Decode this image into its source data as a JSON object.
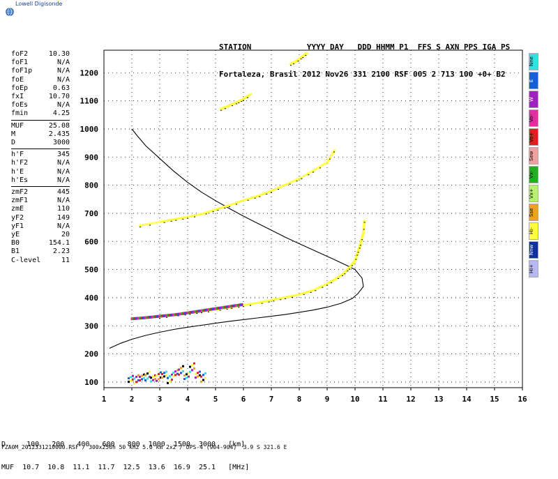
{
  "brand": {
    "name": "Lowell Digisonde"
  },
  "header": {
    "line1": "STATION            YYYY DAY   DDD HHMM P1  FFS S AXN PPS IGA PS",
    "line2": "Fortaleza, Brasil 2012 Nov26 331 2100 RSF 005 2 713 100 +0+ B2"
  },
  "params": [
    {
      "k": "foF2",
      "v": "10.30"
    },
    {
      "k": "foF1",
      "v": "N/A"
    },
    {
      "k": "foF1p",
      "v": "N/A"
    },
    {
      "k": "foE",
      "v": "N/A"
    },
    {
      "k": "foEp",
      "v": "0.63"
    },
    {
      "k": "fxI",
      "v": "10.70"
    },
    {
      "k": "foEs",
      "v": "N/A"
    },
    {
      "k": "fmin",
      "v": "4.25"
    },
    {
      "sep": true
    },
    {
      "k": "MUF",
      "v": "25.08"
    },
    {
      "k": "M",
      "v": "2.435"
    },
    {
      "k": "D",
      "v": "3000"
    },
    {
      "sep": true
    },
    {
      "k": "h'F",
      "v": "345"
    },
    {
      "k": "h'F2",
      "v": "N/A"
    },
    {
      "k": "h'E",
      "v": "N/A"
    },
    {
      "k": "h'Es",
      "v": "N/A"
    },
    {
      "sep": true
    },
    {
      "k": "zmF2",
      "v": "445"
    },
    {
      "k": "zmF1",
      "v": "N/A"
    },
    {
      "k": "zmE",
      "v": "110"
    },
    {
      "k": "yF2",
      "v": "149"
    },
    {
      "k": "yF1",
      "v": "N/A"
    },
    {
      "k": "yE",
      "v": "20"
    },
    {
      "k": "B0",
      "v": "154.1"
    },
    {
      "k": "B1",
      "v": "2.23"
    },
    {
      "k": "C-level",
      "v": "11"
    }
  ],
  "legend": [
    {
      "label": "Nne",
      "color": "#33e0e0"
    },
    {
      "label": "E",
      "color": "#1560d8"
    },
    {
      "label": "W",
      "color": "#a020c0"
    },
    {
      "label": "Vo-",
      "color": "#e030a0"
    },
    {
      "label": "Vo+",
      "color": "#e02020"
    },
    {
      "label": "Sew",
      "color": "#f0a0a0"
    },
    {
      "label": "Vx-",
      "color": "#20b020"
    },
    {
      "label": "Vx+",
      "color": "#b8f070"
    },
    {
      "label": "Sse",
      "color": "#f0a020"
    },
    {
      "label": "Hi-",
      "color": "#ffff40"
    },
    {
      "label": "Nnw",
      "color": "#1030a0"
    },
    {
      "label": "Hi+",
      "color": "#b8b8f0"
    }
  ],
  "footer": {
    "line1": "D     100   200   400   600   800  1000  1500  3000   [km]",
    "line2": "MUF  10.7  10.8  11.1  11.7  12.5  13.6  16.9  25.1   [MHz]",
    "file": "FZA0M_2012331210000.RSF / 300x256h 50 kHz 5.0 km 2x2 / DPS-4 (904-904)  3.9 S 321.6 E"
  },
  "chart_data": {
    "type": "scatter",
    "xlim": [
      1,
      16
    ],
    "ylim": [
      80,
      1280
    ],
    "x_ticks": [
      1,
      2,
      3,
      4,
      5,
      6,
      7,
      8,
      9,
      10,
      11,
      12,
      13,
      14,
      15,
      16
    ],
    "y_ticks": [
      100,
      200,
      300,
      400,
      500,
      600,
      700,
      800,
      900,
      1000,
      1100,
      1200
    ],
    "grid": true,
    "series": [
      {
        "kind": "profile_line",
        "color": "#000000",
        "x": [
          1.2,
          1.6,
          2.0,
          2.5,
          3.0,
          3.5,
          4.0,
          4.5,
          5.0,
          5.5,
          6.0,
          6.5,
          7.0,
          7.5,
          8.0,
          8.5,
          9.0,
          9.5,
          9.9,
          10.1,
          10.3,
          10.25,
          10.0,
          9.7,
          9.2,
          8.6,
          8.0,
          7.5,
          7.0,
          6.5,
          6.0,
          5.5,
          5.0,
          4.5,
          4.0,
          3.5,
          3.0,
          2.5,
          2.2,
          2.0
        ],
        "y": [
          220,
          238,
          252,
          266,
          277,
          287,
          295,
          302,
          309,
          316,
          322,
          328,
          334,
          340,
          348,
          356,
          366,
          380,
          397,
          414,
          440,
          470,
          500,
          515,
          538,
          565,
          592,
          615,
          640,
          665,
          690,
          717,
          745,
          775,
          810,
          850,
          895,
          940,
          975,
          1000
        ]
      },
      {
        "kind": "o_trace",
        "color": "#ffff40",
        "x": [
          3.0,
          3.5,
          4.0,
          4.5,
          5.0,
          5.5,
          6.0,
          6.5,
          7.0,
          7.5,
          8.0,
          8.5,
          9.0,
          9.3,
          9.6,
          9.8,
          10.0,
          10.1,
          10.2,
          10.3,
          10.35
        ],
        "y": [
          330,
          337,
          343,
          350,
          356,
          364,
          372,
          380,
          390,
          400,
          410,
          425,
          448,
          465,
          485,
          505,
          530,
          560,
          590,
          630,
          680
        ]
      },
      {
        "kind": "o_trace_2hop",
        "color": "#ffff40",
        "x": [
          2.3,
          3.0,
          3.5,
          4.0,
          4.5,
          5.0,
          5.5,
          6.0,
          6.5,
          7.0,
          7.5,
          8.0,
          8.5,
          9.0,
          9.3
        ],
        "y": [
          655,
          668,
          677,
          686,
          696,
          712,
          727,
          745,
          760,
          778,
          800,
          822,
          850,
          880,
          930
        ]
      },
      {
        "kind": "o_trace_3hop",
        "color": "#ffff40",
        "x": [
          5.2,
          5.5,
          5.8,
          6.0,
          6.3
        ],
        "y": [
          1070,
          1082,
          1095,
          1105,
          1125
        ]
      },
      {
        "kind": "o_trace_4hop",
        "color": "#ffff40",
        "x": [
          7.7,
          7.9,
          8.1,
          8.3
        ],
        "y": [
          1230,
          1240,
          1255,
          1270
        ]
      },
      {
        "kind": "multi_color_echoes",
        "colors": [
          "#e030a0",
          "#20b020",
          "#e02020",
          "#1560d8",
          "#a020c0"
        ],
        "x": [
          2.0,
          2.4,
          2.8,
          3.2,
          3.6,
          4.0,
          4.4,
          4.8,
          5.2,
          5.6,
          6.0
        ],
        "y": [
          325,
          328,
          332,
          336,
          340,
          346,
          352,
          358,
          364,
          370,
          376
        ]
      },
      {
        "kind": "e_region_clutter",
        "colors": [
          "#000000",
          "#ffff40",
          "#e02020",
          "#1560d8",
          "#33e0e0",
          "#a020c0",
          "#f0a020"
        ],
        "x": [
          1.9,
          2.1,
          2.3,
          2.5,
          2.7,
          2.9,
          3.1,
          3.3,
          3.5,
          3.7,
          3.9,
          4.1,
          4.3,
          4.5
        ],
        "y": [
          110,
          108,
          115,
          120,
          112,
          118,
          125,
          110,
          130,
          140,
          120,
          150,
          125,
          115
        ]
      }
    ]
  }
}
